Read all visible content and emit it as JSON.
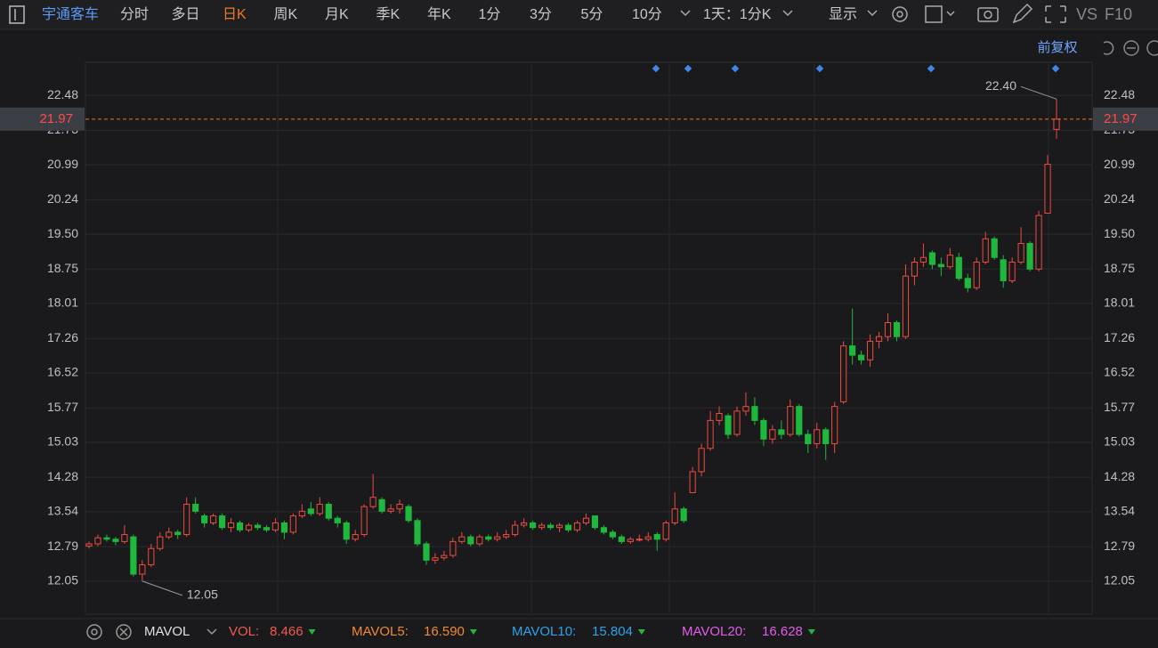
{
  "toolbar": {
    "stock": "宇通客车",
    "tabs": [
      "分时",
      "多日",
      "日K",
      "周K",
      "月K",
      "季K",
      "年K",
      "1分",
      "3分",
      "5分",
      "10分"
    ],
    "active_tab": 2,
    "period": "1天：1分K",
    "display": "显示",
    "tools": [
      "VS",
      "F10"
    ]
  },
  "chart_data": {
    "type": "candlestick",
    "adjust": "前复权",
    "ylim": [
      11.34,
      23.19
    ],
    "yticks": [
      22.48,
      21.73,
      20.99,
      20.24,
      {
        "value": 19.5,
        "label": "19.50"
      },
      18.75,
      18.01,
      17.26,
      16.52,
      15.77,
      15.03,
      14.28,
      13.54,
      12.79,
      12.05
    ],
    "grid": true,
    "up_color": "#ee4b3f",
    "down_color": "#1fb83c",
    "last_price": 21.97,
    "annotations": [
      {
        "value": 22.4,
        "label": "22.40",
        "of": "high"
      },
      {
        "value": 12.05,
        "label": "12.05",
        "of": "low"
      }
    ],
    "ohlc": [
      [
        12.8,
        12.9,
        12.75,
        12.85
      ],
      [
        12.85,
        13.05,
        12.8,
        12.98
      ],
      [
        12.98,
        13.05,
        12.9,
        12.95
      ],
      [
        12.95,
        13.0,
        12.82,
        12.9
      ],
      [
        12.9,
        13.25,
        12.85,
        13.05
      ],
      [
        13.0,
        13.05,
        12.15,
        12.2
      ],
      [
        12.2,
        12.5,
        12.05,
        12.4
      ],
      [
        12.4,
        12.85,
        12.35,
        12.75
      ],
      [
        12.75,
        13.1,
        12.7,
        13.0
      ],
      [
        13.0,
        13.2,
        12.95,
        13.1
      ],
      [
        13.1,
        13.15,
        12.95,
        13.05
      ],
      [
        13.05,
        13.85,
        13.0,
        13.7
      ],
      [
        13.7,
        13.85,
        13.5,
        13.55
      ],
      [
        13.45,
        13.5,
        13.2,
        13.3
      ],
      [
        13.3,
        13.5,
        13.25,
        13.45
      ],
      [
        13.45,
        13.5,
        13.15,
        13.2
      ],
      [
        13.2,
        13.4,
        13.1,
        13.3
      ],
      [
        13.3,
        13.35,
        13.1,
        13.15
      ],
      [
        13.15,
        13.3,
        13.1,
        13.25
      ],
      [
        13.25,
        13.3,
        13.15,
        13.2
      ],
      [
        13.2,
        13.25,
        13.1,
        13.15
      ],
      [
        13.15,
        13.4,
        13.1,
        13.3
      ],
      [
        13.3,
        13.35,
        12.95,
        13.1
      ],
      [
        13.1,
        13.5,
        13.05,
        13.45
      ],
      [
        13.45,
        13.7,
        13.4,
        13.55
      ],
      [
        13.6,
        13.75,
        13.45,
        13.5
      ],
      [
        13.5,
        13.85,
        13.45,
        13.7
      ],
      [
        13.7,
        13.75,
        13.35,
        13.4
      ],
      [
        13.4,
        13.45,
        13.2,
        13.3
      ],
      [
        13.3,
        13.35,
        12.85,
        12.95
      ],
      [
        12.95,
        13.15,
        12.9,
        13.05
      ],
      [
        13.05,
        13.7,
        13.0,
        13.65
      ],
      [
        13.65,
        14.35,
        13.6,
        13.85
      ],
      [
        13.8,
        13.85,
        13.5,
        13.55
      ],
      [
        13.55,
        13.7,
        13.5,
        13.6
      ],
      [
        13.6,
        13.8,
        13.5,
        13.7
      ],
      [
        13.65,
        13.7,
        13.3,
        13.35
      ],
      [
        13.35,
        13.4,
        12.8,
        12.85
      ],
      [
        12.85,
        12.9,
        12.4,
        12.5
      ],
      [
        12.5,
        12.65,
        12.42,
        12.55
      ],
      [
        12.55,
        12.7,
        12.5,
        12.6
      ],
      [
        12.6,
        12.98,
        12.55,
        12.9
      ],
      [
        12.9,
        13.1,
        12.85,
        13.0
      ],
      [
        13.0,
        13.05,
        12.8,
        12.85
      ],
      [
        12.85,
        13.05,
        12.8,
        13.0
      ],
      [
        13.0,
        13.05,
        12.9,
        12.95
      ],
      [
        12.95,
        13.1,
        12.9,
        13.0
      ],
      [
        13.0,
        13.15,
        12.95,
        13.05
      ],
      [
        13.05,
        13.35,
        13.0,
        13.25
      ],
      [
        13.25,
        13.4,
        13.2,
        13.3
      ],
      [
        13.3,
        13.35,
        13.15,
        13.2
      ],
      [
        13.2,
        13.3,
        13.15,
        13.25
      ],
      [
        13.25,
        13.3,
        13.15,
        13.2
      ],
      [
        13.2,
        13.3,
        13.1,
        13.25
      ],
      [
        13.25,
        13.3,
        13.1,
        13.15
      ],
      [
        13.15,
        13.35,
        13.1,
        13.3
      ],
      [
        13.3,
        13.5,
        13.25,
        13.4
      ],
      [
        13.45,
        13.45,
        13.15,
        13.2
      ],
      [
        13.2,
        13.25,
        13.05,
        13.1
      ],
      [
        13.1,
        13.15,
        12.95,
        13.0
      ],
      [
        13.0,
        13.05,
        12.85,
        12.9
      ],
      [
        12.9,
        13.0,
        12.85,
        12.95
      ],
      [
        12.95,
        13.05,
        12.9,
        12.95
      ],
      [
        12.95,
        13.1,
        12.9,
        13.0
      ],
      [
        13.05,
        13.1,
        12.7,
        12.95
      ],
      [
        12.95,
        13.35,
        12.9,
        13.3
      ],
      [
        13.3,
        13.95,
        13.25,
        13.6
      ],
      [
        13.6,
        13.65,
        13.3,
        13.35
      ],
      [
        13.95,
        14.5,
        13.95,
        14.4
      ],
      [
        14.4,
        15.0,
        14.3,
        14.9
      ],
      [
        14.9,
        15.7,
        14.85,
        15.5
      ],
      [
        15.5,
        15.8,
        15.4,
        15.65
      ],
      [
        15.6,
        15.65,
        15.1,
        15.2
      ],
      [
        15.2,
        15.8,
        15.15,
        15.7
      ],
      [
        15.7,
        16.1,
        15.6,
        15.8
      ],
      [
        15.8,
        16.0,
        15.4,
        15.5
      ],
      [
        15.5,
        15.55,
        14.95,
        15.1
      ],
      [
        15.1,
        15.4,
        15.0,
        15.3
      ],
      [
        15.3,
        15.5,
        15.1,
        15.2
      ],
      [
        15.2,
        15.95,
        15.15,
        15.8
      ],
      [
        15.8,
        15.85,
        15.15,
        15.2
      ],
      [
        15.2,
        15.3,
        14.8,
        15.0
      ],
      [
        15.0,
        15.45,
        14.9,
        15.3
      ],
      [
        15.3,
        15.35,
        14.65,
        15.0
      ],
      [
        15.0,
        15.9,
        14.8,
        15.8
      ],
      [
        15.9,
        17.2,
        15.85,
        17.1
      ],
      [
        17.1,
        17.9,
        16.7,
        16.9
      ],
      [
        16.9,
        17.0,
        16.7,
        16.8
      ],
      [
        16.8,
        17.35,
        16.65,
        17.2
      ],
      [
        17.2,
        17.4,
        17.05,
        17.3
      ],
      [
        17.3,
        17.8,
        17.2,
        17.6
      ],
      [
        17.6,
        17.65,
        17.2,
        17.3
      ],
      [
        17.3,
        18.85,
        17.25,
        18.6
      ],
      [
        18.6,
        19.0,
        18.4,
        18.9
      ],
      [
        18.9,
        19.3,
        18.8,
        19.0
      ],
      [
        19.1,
        19.15,
        18.75,
        18.85
      ],
      [
        18.85,
        19.0,
        18.6,
        18.8
      ],
      [
        18.8,
        19.2,
        18.75,
        19.05
      ],
      [
        19.0,
        19.1,
        18.5,
        18.55
      ],
      [
        18.55,
        18.65,
        18.25,
        18.35
      ],
      [
        18.35,
        19.0,
        18.3,
        18.9
      ],
      [
        18.9,
        19.55,
        18.85,
        19.4
      ],
      [
        19.4,
        19.45,
        18.95,
        19.0
      ],
      [
        18.95,
        19.05,
        18.35,
        18.5
      ],
      [
        18.5,
        19.0,
        18.45,
        18.9
      ],
      [
        18.9,
        19.65,
        18.85,
        19.3
      ],
      [
        19.3,
        19.35,
        18.7,
        18.75
      ],
      [
        18.75,
        20.0,
        18.7,
        19.9
      ],
      [
        19.95,
        21.2,
        19.95,
        21.0
      ],
      [
        21.75,
        22.4,
        21.55,
        21.97
      ]
    ]
  },
  "indicator": {
    "name": "MAVOL",
    "items": [
      {
        "name": "VOL:",
        "value": "8.466",
        "color": "#ee5a50"
      },
      {
        "name": "MAVOL5:",
        "value": "16.590",
        "color": "#ee8a32"
      },
      {
        "name": "MAVOL10:",
        "value": "15.804",
        "color": "#2ea3e6"
      },
      {
        "name": "MAVOL20:",
        "value": "16.628",
        "color": "#e25fe6"
      }
    ]
  }
}
